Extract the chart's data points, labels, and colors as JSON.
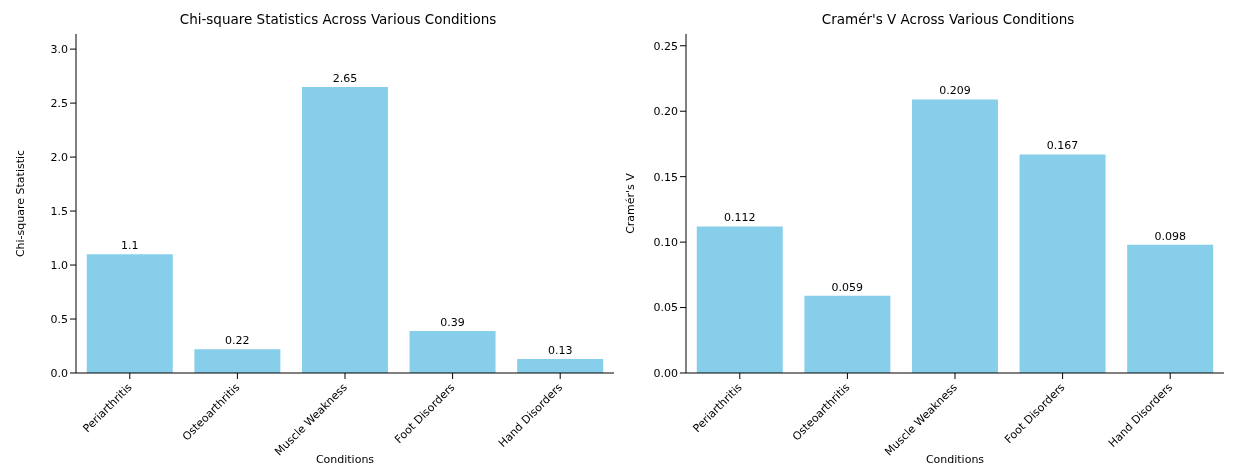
{
  "chart_data": [
    {
      "type": "bar",
      "title": "Chi-square Statistics Across Various Conditions",
      "xlabel": "Conditions",
      "ylabel": "Chi-square Statistic",
      "categories": [
        "Periarthritis",
        "Osteoarthritis",
        "Muscle Weakness",
        "Foot Disorders",
        "Hand Disorders"
      ],
      "values": [
        1.1,
        0.22,
        2.65,
        0.39,
        0.13
      ],
      "color": "#87ceeb",
      "ylim": [
        0,
        3.14
      ],
      "yticks": [
        {
          "value": 0,
          "label": "0.0"
        },
        {
          "value": 0.5,
          "label": "0.5"
        },
        {
          "value": 1,
          "label": "1.0"
        },
        {
          "value": 1.5,
          "label": "1.5"
        },
        {
          "value": 2,
          "label": "2.0"
        },
        {
          "value": 2.5,
          "label": "2.5"
        },
        {
          "value": 3,
          "label": "3.0"
        }
      ],
      "data_labels": true,
      "grid": false,
      "legend": false
    },
    {
      "type": "bar",
      "title": "Cramér's V Across Various Conditions",
      "xlabel": "Conditions",
      "ylabel": "Cramér's V",
      "categories": [
        "Periarthritis",
        "Osteoarthritis",
        "Muscle Weakness",
        "Foot Disorders",
        "Hand Disorders"
      ],
      "values": [
        0.112,
        0.059,
        0.209,
        0.167,
        0.098
      ],
      "color": "#87ceeb",
      "ylim": [
        0,
        0.259
      ],
      "yticks": [
        {
          "value": 0,
          "label": "0.00"
        },
        {
          "value": 0.05,
          "label": "0.05"
        },
        {
          "value": 0.1,
          "label": "0.10"
        },
        {
          "value": 0.15,
          "label": "0.15"
        },
        {
          "value": 0.2,
          "label": "0.20"
        },
        {
          "value": 0.25,
          "label": "0.25"
        }
      ],
      "data_labels": true,
      "grid": false,
      "legend": false
    }
  ]
}
